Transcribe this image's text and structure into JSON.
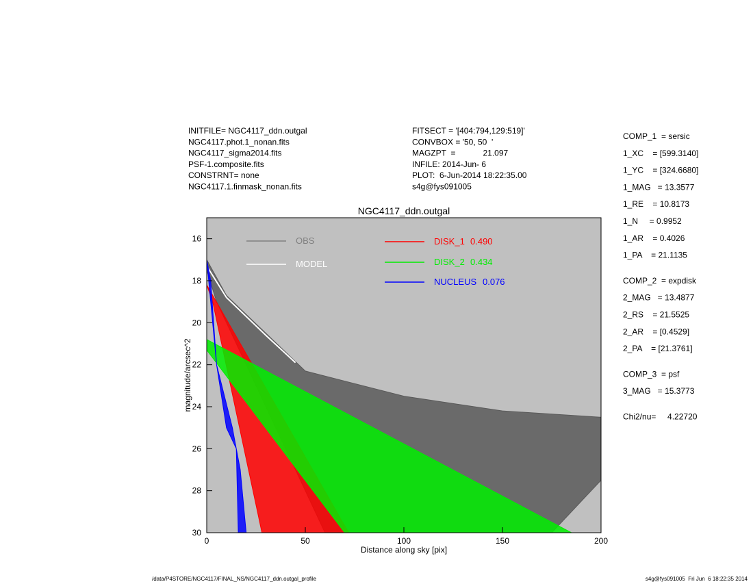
{
  "header_left": [
    "INITFILE= NGC4117_ddn.outgal",
    "NGC4117.phot.1_nonan.fits",
    "NGC4117_sigma2014.fits",
    "PSF-1.composite.fits",
    "CONSTRNT= none",
    "NGC4117.1.finmask_nonan.fits"
  ],
  "header_middle": [
    "FITSECT = '[404:794,129:519]'",
    "CONVBOX = '50, 50  '",
    "MAGZPT  =            21.097",
    "INFILE: 2014-Jun- 6",
    "PLOT:  6-Jun-2014 18:22:35.00",
    "s4g@fys091005"
  ],
  "parameters": [
    [
      "COMP_1  = sersic",
      "1_XC    = [599.3140]",
      "1_YC    = [324.6680]",
      "1_MAG   = 13.3577",
      "1_RE    = 10.8173",
      "1_N     = 0.9952",
      "1_AR    = 0.4026",
      "1_PA    = 21.1135"
    ],
    [
      "COMP_2  = expdisk",
      "2_MAG   = 13.4877",
      "2_RS    = 21.5525",
      "2_AR    = [0.4529]",
      "2_PA    = [21.3761]"
    ],
    [
      "COMP_3  = psf",
      "3_MAG   = 15.3773"
    ],
    [
      "Chi2/nu=     4.22720"
    ]
  ],
  "footer_left": "/data/P4STORE/NGC4117/FINAL_NS/NGC4117_ddn.outgal_profile",
  "footer_right": "s4g@fys091005  Fri Jun  6 18:22:35 2014",
  "chart_data": {
    "type": "area",
    "title": "NGC4117_ddn.outgal",
    "x_label": "Distance along sky [pix]",
    "y_label": "magnitude/arcsec^2",
    "xlim": [
      0,
      200
    ],
    "xticks": [
      0,
      50,
      100,
      150,
      200
    ],
    "ylim": [
      30,
      15
    ],
    "yticks": [
      16,
      18,
      20,
      22,
      24,
      26,
      28,
      30
    ],
    "background": "#c0c0c0",
    "series": [
      {
        "name": "OBS",
        "color": "#5a5a5a",
        "x": [
          0,
          10,
          30,
          50,
          100,
          150,
          200,
          200,
          175,
          60,
          20,
          5,
          0
        ],
        "values": [
          17,
          18.7,
          20.5,
          22.3,
          23.5,
          24.2,
          24.5,
          27.5,
          30,
          30,
          22,
          19,
          17.5
        ]
      },
      {
        "name": "MODEL",
        "color": "#ffffff",
        "x": [
          0,
          10,
          30,
          45
        ],
        "values": [
          17.3,
          18.8,
          20.6,
          21.9
        ]
      },
      {
        "name": "DISK_1",
        "fraction": "0.490",
        "color": "#ff0000",
        "x": [
          0,
          72,
          28,
          3
        ],
        "values": [
          18.2,
          30,
          30,
          19
        ]
      },
      {
        "name": "DISK_2",
        "fraction": "0.434",
        "color": "#00ee00",
        "x": [
          0,
          185,
          70,
          0
        ],
        "values": [
          20.8,
          30,
          30,
          21.3
        ]
      },
      {
        "name": "NUCLEUS",
        "fraction": "0.076",
        "color": "#0000ff",
        "x": [
          0,
          5,
          13,
          17,
          20,
          16,
          15,
          10,
          5,
          2
        ],
        "values": [
          17,
          22,
          25,
          27,
          30,
          30,
          26,
          25,
          22,
          18
        ]
      }
    ]
  }
}
